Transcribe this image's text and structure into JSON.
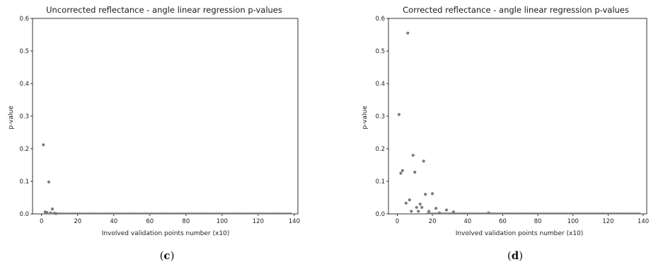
{
  "chart_data": [
    {
      "type": "scatter",
      "panel_label": "c",
      "title": "Uncorrected reflectance - angle linear regression p-values",
      "xlabel": "Involved validation points number (x10)",
      "ylabel": "p-value",
      "xlim": [
        -5,
        142
      ],
      "ylim": [
        0,
        0.6
      ],
      "xticks": [
        0,
        20,
        40,
        60,
        80,
        100,
        120,
        140
      ],
      "yticks": [
        0.0,
        0.1,
        0.2,
        0.3,
        0.4,
        0.5,
        0.6
      ],
      "marker_color": "#7a7a7a",
      "points": [
        {
          "x": 1,
          "y": 0.212
        },
        {
          "x": 2,
          "y": 0.006
        },
        {
          "x": 3,
          "y": 0.004
        },
        {
          "x": 4,
          "y": 0.098
        },
        {
          "x": 5,
          "y": 0.003
        },
        {
          "x": 6,
          "y": 0.015
        },
        {
          "x": 7,
          "y": 0.002
        },
        {
          "x": 8,
          "y": 0.001
        }
      ],
      "baseline": {
        "from": 9,
        "to": 138,
        "y": 0.0
      }
    },
    {
      "type": "scatter",
      "panel_label": "d",
      "title": "Corrected reflectance - angle linear regression p-values",
      "xlabel": "Involved validation points number (x10)",
      "ylabel": "p-value",
      "xlim": [
        -5,
        142
      ],
      "ylim": [
        0,
        0.6
      ],
      "xticks": [
        0,
        20,
        40,
        60,
        80,
        100,
        120,
        140
      ],
      "yticks": [
        0.0,
        0.1,
        0.2,
        0.3,
        0.4,
        0.5,
        0.6
      ],
      "marker_color": "#7a7a7a",
      "points": [
        {
          "x": 1,
          "y": 0.305
        },
        {
          "x": 2,
          "y": 0.125
        },
        {
          "x": 3,
          "y": 0.133
        },
        {
          "x": 5,
          "y": 0.033
        },
        {
          "x": 6,
          "y": 0.555
        },
        {
          "x": 7,
          "y": 0.043
        },
        {
          "x": 8,
          "y": 0.008
        },
        {
          "x": 9,
          "y": 0.18
        },
        {
          "x": 10,
          "y": 0.128
        },
        {
          "x": 11,
          "y": 0.02
        },
        {
          "x": 12,
          "y": 0.008
        },
        {
          "x": 13,
          "y": 0.03
        },
        {
          "x": 14,
          "y": 0.02
        },
        {
          "x": 15,
          "y": 0.162
        },
        {
          "x": 16,
          "y": 0.06
        },
        {
          "x": 18,
          "y": 0.008
        },
        {
          "x": 20,
          "y": 0.062
        },
        {
          "x": 22,
          "y": 0.017
        },
        {
          "x": 24,
          "y": 0.003
        },
        {
          "x": 28,
          "y": 0.012
        },
        {
          "x": 32,
          "y": 0.006
        },
        {
          "x": 52,
          "y": 0.003
        }
      ],
      "baseline": {
        "from": 17,
        "to": 138,
        "y": 0.0
      }
    }
  ]
}
